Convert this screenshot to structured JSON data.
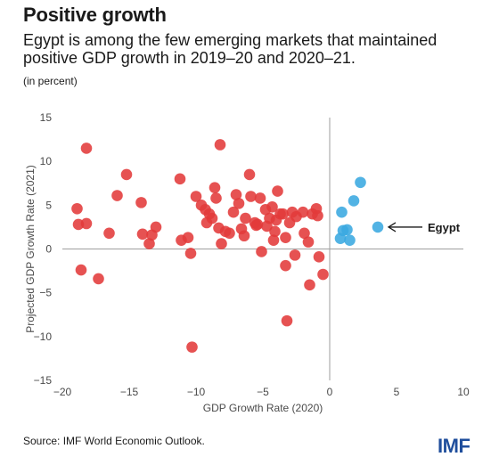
{
  "header": {
    "title": "Positive growth",
    "subtitle": "Egypt is among the few emerging markets that maintained positive GDP growth in 2019–20 and 2020–21.",
    "unit_note": "(in percent)"
  },
  "footer": {
    "source": "Source: IMF World Economic Outlook.",
    "logo_text": "IMF"
  },
  "chart_data": {
    "type": "scatter",
    "xlabel": "GDP Growth Rate (2020)",
    "ylabel": "Projected GDP Growth Rate (2021)",
    "xlim": [
      -20,
      10
    ],
    "ylim": [
      -15,
      15
    ],
    "x_ticks": [
      -20,
      -15,
      -10,
      -5,
      0,
      5,
      10
    ],
    "y_ticks": [
      -15,
      -10,
      -5,
      0,
      5,
      10,
      15
    ],
    "x_tick_labels": [
      "−20",
      "−15",
      "−10",
      "−5",
      "0",
      "5",
      "10"
    ],
    "y_tick_labels": [
      "−15",
      "−10",
      "−5",
      "0",
      "5",
      "10",
      "15"
    ],
    "grid": false,
    "colors": {
      "negative": "#e23a3a",
      "positive": "#3aa8e0",
      "axis": "#9e9e9e"
    },
    "annotation": {
      "text": "Egypt",
      "x": 3.6,
      "y": 2.5
    },
    "series": [
      {
        "group": "negative",
        "points": [
          [
            -18.2,
            11.5
          ],
          [
            -18.9,
            4.6
          ],
          [
            -18.8,
            2.8
          ],
          [
            -18.2,
            2.9
          ],
          [
            -18.6,
            -2.4
          ],
          [
            -17.3,
            -3.4
          ],
          [
            -16.5,
            1.8
          ],
          [
            -15.9,
            6.1
          ],
          [
            -15.2,
            8.5
          ],
          [
            -14.1,
            5.3
          ],
          [
            -14.0,
            1.7
          ],
          [
            -13.5,
            0.6
          ],
          [
            -13.3,
            1.6
          ],
          [
            -13.0,
            2.5
          ],
          [
            -11.2,
            8.0
          ],
          [
            -11.1,
            1.0
          ],
          [
            -10.6,
            1.3
          ],
          [
            -10.4,
            -0.5
          ],
          [
            -10.3,
            -11.2
          ],
          [
            -10.0,
            6.0
          ],
          [
            -9.6,
            5.0
          ],
          [
            -9.3,
            4.5
          ],
          [
            -9.2,
            3.0
          ],
          [
            -9.0,
            4.0
          ],
          [
            -8.8,
            3.5
          ],
          [
            -8.6,
            7.0
          ],
          [
            -8.5,
            5.8
          ],
          [
            -8.2,
            11.9
          ],
          [
            -8.3,
            2.4
          ],
          [
            -8.1,
            0.6
          ],
          [
            -7.8,
            2.0
          ],
          [
            -7.5,
            1.8
          ],
          [
            -7.2,
            4.2
          ],
          [
            -7.0,
            6.2
          ],
          [
            -6.8,
            5.2
          ],
          [
            -6.6,
            2.3
          ],
          [
            -6.4,
            1.5
          ],
          [
            -6.3,
            3.5
          ],
          [
            -6.0,
            8.5
          ],
          [
            -5.9,
            6.0
          ],
          [
            -5.6,
            3.0
          ],
          [
            -5.5,
            2.7
          ],
          [
            -5.4,
            2.8
          ],
          [
            -5.2,
            5.8
          ],
          [
            -5.1,
            -0.3
          ],
          [
            -4.8,
            4.5
          ],
          [
            -4.7,
            2.6
          ],
          [
            -4.5,
            3.5
          ],
          [
            -4.3,
            4.8
          ],
          [
            -4.2,
            1.0
          ],
          [
            -4.1,
            2.0
          ],
          [
            -4.0,
            3.3
          ],
          [
            -3.9,
            6.6
          ],
          [
            -3.7,
            4.0
          ],
          [
            -3.5,
            4.0
          ],
          [
            -3.3,
            1.3
          ],
          [
            -3.3,
            -1.9
          ],
          [
            -3.2,
            -8.2
          ],
          [
            -3.0,
            3.0
          ],
          [
            -2.8,
            4.2
          ],
          [
            -2.6,
            -0.7
          ],
          [
            -2.5,
            3.7
          ],
          [
            -2.0,
            4.2
          ],
          [
            -1.9,
            1.8
          ],
          [
            -1.6,
            0.8
          ],
          [
            -1.5,
            -4.1
          ],
          [
            -1.3,
            4.0
          ],
          [
            -1.0,
            4.6
          ],
          [
            -0.9,
            3.8
          ],
          [
            -0.8,
            -0.9
          ],
          [
            -0.5,
            -2.9
          ]
        ]
      },
      {
        "group": "positive",
        "points": [
          [
            0.8,
            1.2
          ],
          [
            0.9,
            4.2
          ],
          [
            1.0,
            2.1
          ],
          [
            1.3,
            2.2
          ],
          [
            1.5,
            1.0
          ],
          [
            1.8,
            5.5
          ],
          [
            2.3,
            7.6
          ],
          [
            3.6,
            2.5
          ]
        ]
      }
    ]
  }
}
